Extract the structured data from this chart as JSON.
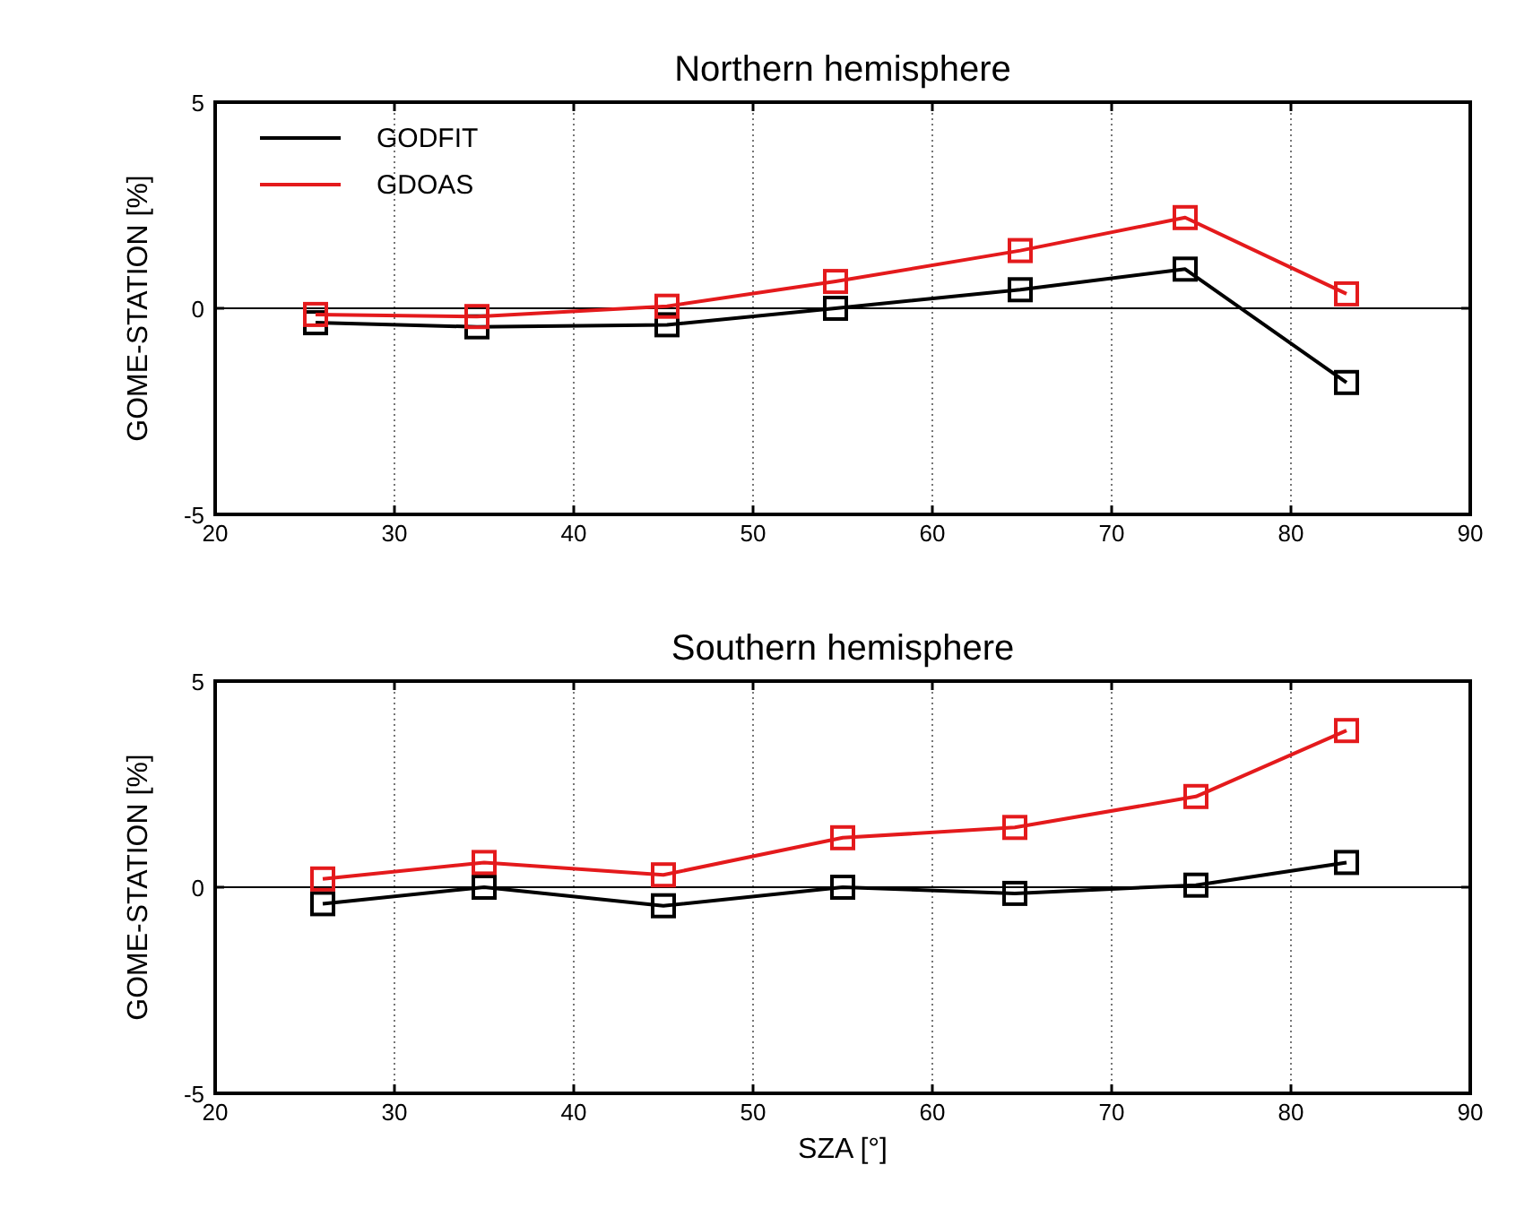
{
  "chart_data": [
    {
      "type": "line",
      "title": "Northern hemisphere",
      "ylabel": "GOME-STATION [%]",
      "xlim": [
        20,
        90
      ],
      "xticks": [
        20,
        30,
        40,
        50,
        60,
        70,
        80,
        90
      ],
      "ylim": [
        -5,
        5
      ],
      "yticks": [
        -5,
        0,
        5
      ],
      "grid": "x",
      "legend": "top left",
      "marker": "square",
      "line_style": "solid",
      "ref_lines": [
        {
          "axis": "y",
          "value": 0,
          "color": "#000000"
        }
      ],
      "series": [
        {
          "name": "GODFIT",
          "color": "#000000",
          "x": [
            25.6,
            34.6,
            45.2,
            54.6,
            64.9,
            74.1,
            83.1
          ],
          "values": [
            -0.35,
            -0.45,
            -0.4,
            0.0,
            0.45,
            0.95,
            -1.8
          ]
        },
        {
          "name": "GDOAS",
          "color": "#e41a1c",
          "x": [
            25.6,
            34.6,
            45.2,
            54.6,
            64.9,
            74.1,
            83.1
          ],
          "values": [
            -0.15,
            -0.2,
            0.05,
            0.65,
            1.4,
            2.2,
            0.35
          ]
        }
      ]
    },
    {
      "type": "line",
      "title": "Southern hemisphere",
      "xlabel": "SZA [°]",
      "ylabel": "GOME-STATION [%]",
      "xlim": [
        20,
        90
      ],
      "xticks": [
        20,
        30,
        40,
        50,
        60,
        70,
        80,
        90
      ],
      "ylim": [
        -5,
        5
      ],
      "yticks": [
        -5,
        0,
        5
      ],
      "grid": "x",
      "legend": false,
      "marker": "square",
      "line_style": "solid",
      "ref_lines": [
        {
          "axis": "y",
          "value": 0,
          "color": "#000000"
        }
      ],
      "series": [
        {
          "color": "#000000",
          "x": [
            26,
            35,
            45,
            55,
            64.6,
            74.7,
            83.1
          ],
          "values": [
            -0.4,
            0.0,
            -0.45,
            0.0,
            -0.15,
            0.05,
            0.6
          ]
        },
        {
          "color": "#e41a1c",
          "x": [
            26,
            35,
            45,
            55,
            64.6,
            74.7,
            83.1
          ],
          "values": [
            0.2,
            0.6,
            0.3,
            1.2,
            1.45,
            2.2,
            3.8
          ]
        }
      ]
    }
  ]
}
